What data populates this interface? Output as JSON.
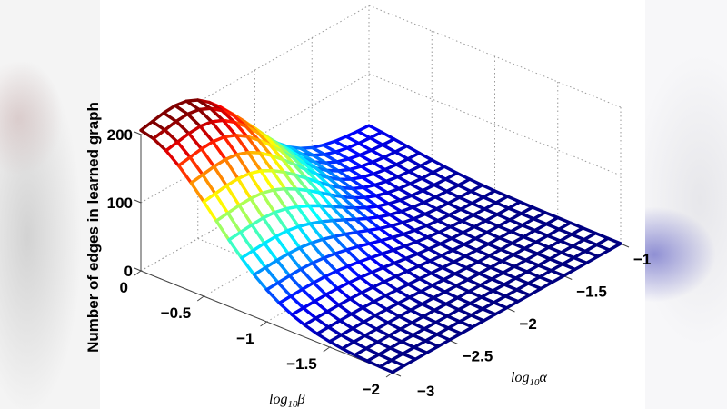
{
  "chart_data": {
    "type": "surface",
    "title": "",
    "xlabel": "log10 α",
    "ylabel": "log10 β",
    "zlabel": "Number of edges in learned graph",
    "axes_labels_display": {
      "x": "log",
      "x_sub": "10",
      "x_sym": "α",
      "y": "log",
      "y_sub": "10",
      "y_sym": "β"
    },
    "x_range": [
      -3,
      -1
    ],
    "y_range": [
      -2,
      0
    ],
    "z_range": [
      0,
      200
    ],
    "x_ticks": [
      "−3",
      "−2.5",
      "−2",
      "−1.5",
      "−1"
    ],
    "y_ticks": [
      "0",
      "−0.5",
      "−1",
      "−1.5",
      "−2"
    ],
    "z_ticks": [
      "0",
      "100",
      "200"
    ],
    "grid": true,
    "colormap": "jet",
    "mesh": {
      "x_count": 21,
      "y_count": 21,
      "description": "Z peaks ~205 near log10β=0, log10α≈-2.7; decays to ~0 as log10β→-2 and to ~20 as log10α→-1",
      "sample_values": [
        {
          "log10_alpha": -3.0,
          "log10_beta": 0.0,
          "z": 190
        },
        {
          "log10_alpha": -2.6,
          "log10_beta": 0.0,
          "z": 205
        },
        {
          "log10_alpha": -2.0,
          "log10_beta": 0.0,
          "z": 110
        },
        {
          "log10_alpha": -1.5,
          "log10_beta": 0.0,
          "z": 45
        },
        {
          "log10_alpha": -1.0,
          "log10_beta": 0.0,
          "z": 22
        },
        {
          "log10_alpha": -3.0,
          "log10_beta": -0.5,
          "z": 140
        },
        {
          "log10_alpha": -3.0,
          "log10_beta": -1.0,
          "z": 40
        },
        {
          "log10_alpha": -3.0,
          "log10_beta": -1.5,
          "z": 8
        },
        {
          "log10_alpha": -3.0,
          "log10_beta": -2.0,
          "z": 2
        },
        {
          "log10_alpha": -1.0,
          "log10_beta": -2.0,
          "z": 0
        }
      ]
    }
  }
}
